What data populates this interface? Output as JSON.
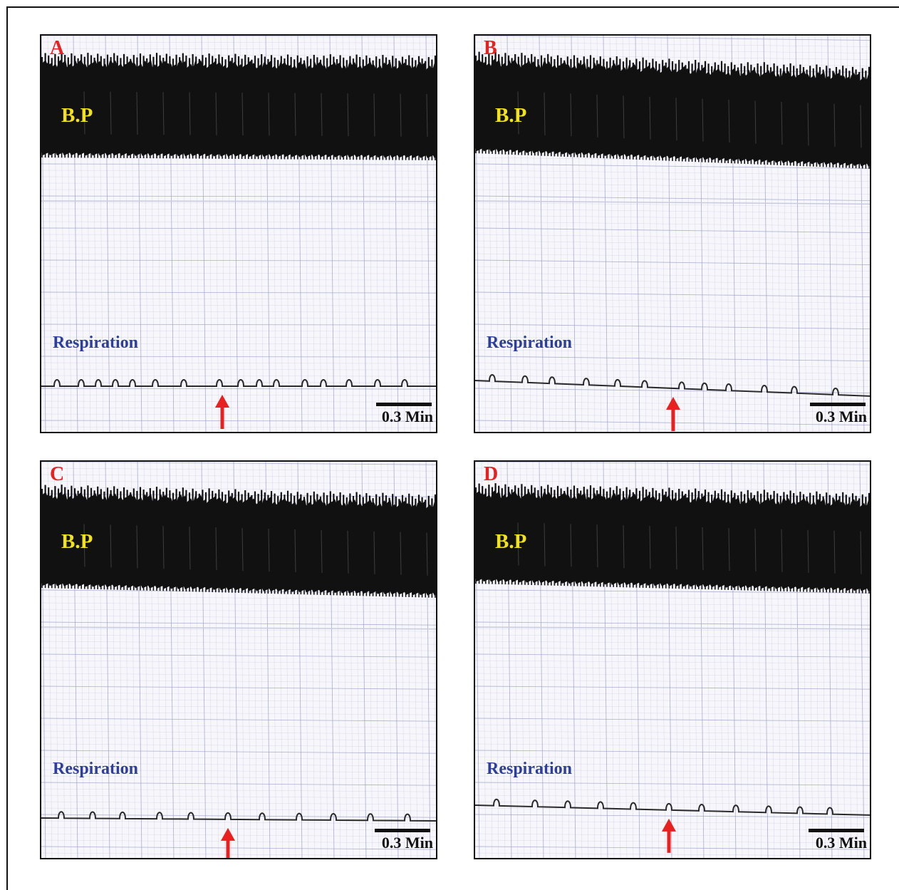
{
  "colors": {
    "letter": "#e8201f",
    "bp_label": "#f2e21a",
    "respiration_label": "#2d3f9a",
    "arrow": "#e8201f",
    "trace": "#111111",
    "grid": "#9aa0c8"
  },
  "icons": {
    "marker": "red-up-arrow-icon"
  },
  "panels": [
    {
      "letter": "A",
      "bp_label": "B.P",
      "respiration_label": "Respiration",
      "scale_label": "0.3 Min"
    },
    {
      "letter": "B",
      "bp_label": "B.P",
      "respiration_label": "Respiration",
      "scale_label": "0.3 Min"
    },
    {
      "letter": "C",
      "bp_label": "B.P",
      "respiration_label": "Respiration",
      "scale_label": "0.3 Min"
    },
    {
      "letter": "D",
      "bp_label": "B.P",
      "respiration_label": "Respiration",
      "scale_label": "0.3 Min"
    }
  ]
}
